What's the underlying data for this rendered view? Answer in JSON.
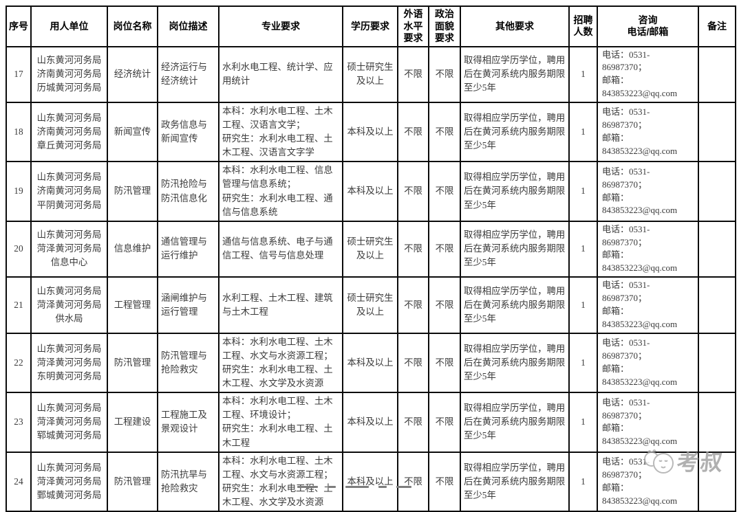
{
  "watermark": {
    "text": "考叔"
  },
  "table": {
    "headers": {
      "xh": "序号",
      "yrdw": "用人单位",
      "gwmc": "岗位名称",
      "gwms": "岗位描述",
      "zyyq": "专业要求",
      "xlyq": "学历要求",
      "wyyq": "外语\n水平\n要求",
      "zzyq": "政治\n面貌\n要求",
      "qtyq": "其他要求",
      "rs": "招聘\n人数",
      "dh": "咨询\n电话/邮箱",
      "bz": "备注"
    },
    "rows": [
      {
        "xh": "17",
        "yrdw": "山东黄河河务局\n济南黄河河务局\n历城黄河河务局",
        "gwmc": "经济统计",
        "gwms": "经济运行与经济统计",
        "zyyq": "水利水电工程、统计学、应用统计",
        "xlyq": "硕士研究生\n及以上",
        "wyyq": "不限",
        "zzyq": "不限",
        "qtyq": "取得相应学历学位，聘用后在黄河系统内服务期限至少5年",
        "rs": "1",
        "dh": "电话：0531-86987370；\n邮箱：\n843853223@qq.com",
        "bz": ""
      },
      {
        "xh": "18",
        "yrdw": "山东黄河河务局\n济南黄河河务局\n章丘黄河河务局",
        "gwmc": "新闻宣传",
        "gwms": "政务信息与新闻宣传",
        "zyyq": "本科：水利水电工程、土木工程、汉语言文学；\n研究生：水利水电工程、土木工程、汉语言文字学",
        "xlyq": "本科及以上",
        "wyyq": "不限",
        "zzyq": "不限",
        "qtyq": "取得相应学历学位，聘用后在黄河系统内服务期限至少5年",
        "rs": "1",
        "dh": "电话：0531-86987370；\n邮箱：\n843853223@qq.com",
        "bz": ""
      },
      {
        "xh": "19",
        "yrdw": "山东黄河河务局\n济南黄河河务局\n平阴黄河河务局",
        "gwmc": "防汛管理",
        "gwms": "防汛抢险与防汛信息化",
        "zyyq": "本科：水利水电工程、信息管理与信息系统；\n研究生：水利水电工程、通信与信息系统",
        "xlyq": "本科及以上",
        "wyyq": "不限",
        "zzyq": "不限",
        "qtyq": "取得相应学历学位，聘用后在黄河系统内服务期限至少5年",
        "rs": "1",
        "dh": "电话：0531-86987370；\n邮箱：\n843853223@qq.com",
        "bz": ""
      },
      {
        "xh": "20",
        "yrdw": "山东黄河河务局\n菏泽黄河河务局\n信息中心",
        "gwmc": "信息维护",
        "gwms": "通信管理与运行维护",
        "zyyq": "通信与信息系统、电子与通信工程、信号与信息处理",
        "xlyq": "硕士研究生\n及以上",
        "wyyq": "不限",
        "zzyq": "不限",
        "qtyq": "取得相应学历学位，聘用后在黄河系统内服务期限至少5年",
        "rs": "1",
        "dh": "电话：0531-86987370；\n邮箱：\n843853223@qq.com",
        "bz": ""
      },
      {
        "xh": "21",
        "yrdw": "山东黄河河务局\n菏泽黄河河务局\n供水局",
        "gwmc": "工程管理",
        "gwms": "涵闸维护与运行管理",
        "zyyq": "水利工程、土木工程、建筑与土木工程",
        "xlyq": "硕士研究生\n及以上",
        "wyyq": "不限",
        "zzyq": "不限",
        "qtyq": "取得相应学历学位，聘用后在黄河系统内服务期限至少5年",
        "rs": "1",
        "dh": "电话：0531-86987370；\n邮箱：\n843853223@qq.com",
        "bz": ""
      },
      {
        "xh": "22",
        "yrdw": "山东黄河河务局\n菏泽黄河河务局\n东明黄河河务局",
        "gwmc": "防汛管理",
        "gwms": "防汛管理与抢险救灾",
        "zyyq": "本科：水利水电工程、土木工程、水文与水资源工程；\n研究生：水利水电工程、土木工程、水文学及水资源",
        "xlyq": "本科及以上",
        "wyyq": "不限",
        "zzyq": "不限",
        "qtyq": "取得相应学历学位，聘用后在黄河系统内服务期限至少5年",
        "rs": "1",
        "dh": "电话：0531-86987370；\n邮箱：\n843853223@qq.com",
        "bz": ""
      },
      {
        "xh": "23",
        "yrdw": "山东黄河河务局\n菏泽黄河河务局\n郓城黄河河务局",
        "gwmc": "工程建设",
        "gwms": "工程施工及景观设计",
        "zyyq": "本科：水利水电工程、土木工程、环境设计；\n研究生：水利水电工程、土木工程",
        "xlyq": "本科及以上",
        "wyyq": "不限",
        "zzyq": "不限",
        "qtyq": "取得相应学历学位，聘用后在黄河系统内服务期限至少5年",
        "rs": "1",
        "dh": "电话：0531-86987370；\n邮箱：\n843853223@qq.com",
        "bz": ""
      },
      {
        "xh": "24",
        "yrdw": "山东黄河河务局\n菏泽黄河河务局\n鄄城黄河河务局",
        "gwmc": "防汛管理",
        "gwms": "防汛抗旱与抢险救灾",
        "zyyq": "本科：水利水电工程、土木工程、水文与水资源工程；\n研究生：水利水电工程、土木工程、水文学及水资源",
        "xlyq": "本科及以上",
        "wyyq": "不限",
        "zzyq": "不限",
        "qtyq": "取得相应学历学位，聘用后在黄河系统内服务期限至少5年",
        "rs": "1",
        "dh": "电话：0531-86987370；\n邮箱：\n843853223@qq.com",
        "bz": ""
      }
    ]
  }
}
